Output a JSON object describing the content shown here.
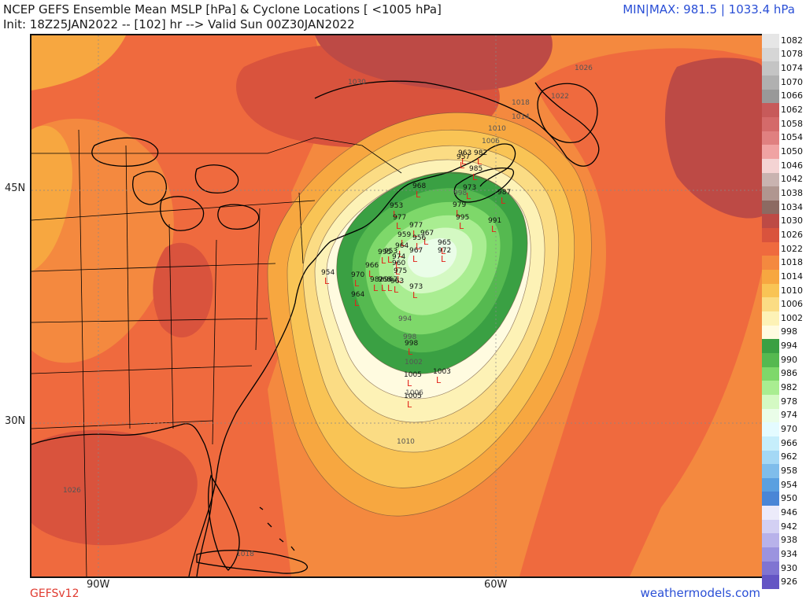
{
  "header": {
    "title": "NCEP GEFS Ensemble Mean MSLP [hPa] & Cyclone Locations [ <1005 hPa]",
    "init_line": "Init: 18Z25JAN2022 -- [102] hr --> Valid Sun 00Z30JAN2022",
    "minmax": "MIN|MAX: 981.5 | 1033.4 hPa"
  },
  "axes": {
    "lat_labels": [
      "45N",
      "30N"
    ],
    "lon_labels": [
      "90W",
      "60W"
    ]
  },
  "footer": {
    "model": "GEFSv12",
    "site": "weathermodels.com"
  },
  "colorbar": {
    "levels": [
      {
        "label": "1082",
        "color": "#e6e6e6"
      },
      {
        "label": "1078",
        "color": "#d6d6d6"
      },
      {
        "label": "1074",
        "color": "#c4c4c4"
      },
      {
        "label": "1070",
        "color": "#b0b0b0"
      },
      {
        "label": "1066",
        "color": "#999999"
      },
      {
        "label": "1062",
        "color": "#c75a5a"
      },
      {
        "label": "1058",
        "color": "#d46a6a"
      },
      {
        "label": "1054",
        "color": "#e08080"
      },
      {
        "label": "1050",
        "color": "#f0a3a3"
      },
      {
        "label": "1046",
        "color": "#f4d3d3"
      },
      {
        "label": "1042",
        "color": "#c9b3b0"
      },
      {
        "label": "1038",
        "color": "#b09690"
      },
      {
        "label": "1034",
        "color": "#8c6a62"
      },
      {
        "label": "1030",
        "color": "#bd4a45"
      },
      {
        "label": "1026",
        "color": "#d9533d"
      },
      {
        "label": "1022",
        "color": "#ef6a3e"
      },
      {
        "label": "1018",
        "color": "#f4893f"
      },
      {
        "label": "1014",
        "color": "#f7a740"
      },
      {
        "label": "1010",
        "color": "#f9c455"
      },
      {
        "label": "1006",
        "color": "#fbdc84"
      },
      {
        "label": "1002",
        "color": "#fdf2b6"
      },
      {
        "label": "998",
        "color": "#fffbe0"
      },
      {
        "label": "994",
        "color": "#3aa043"
      },
      {
        "label": "990",
        "color": "#55b950"
      },
      {
        "label": "986",
        "color": "#7ed86a"
      },
      {
        "label": "982",
        "color": "#a9ed91"
      },
      {
        "label": "978",
        "color": "#d4f9c3"
      },
      {
        "label": "974",
        "color": "#eafde8"
      },
      {
        "label": "970",
        "color": "#e4fbff"
      },
      {
        "label": "966",
        "color": "#c6eefb"
      },
      {
        "label": "962",
        "color": "#a4d8f5"
      },
      {
        "label": "958",
        "color": "#7fbdeb"
      },
      {
        "label": "954",
        "color": "#5aa0e0"
      },
      {
        "label": "950",
        "color": "#4a86d6"
      },
      {
        "label": "946",
        "color": "#ecebfa"
      },
      {
        "label": "942",
        "color": "#d3d0f3"
      },
      {
        "label": "938",
        "color": "#b8b2ea"
      },
      {
        "label": "934",
        "color": "#9b93df"
      },
      {
        "label": "930",
        "color": "#7f74d2"
      },
      {
        "label": "926",
        "color": "#6455c4"
      }
    ]
  },
  "isobar_labels": [
    {
      "text": "1030"
    },
    {
      "text": "1026"
    },
    {
      "text": "1018"
    },
    {
      "text": "1022"
    },
    {
      "text": "1014"
    },
    {
      "text": "1010"
    },
    {
      "text": "1006"
    },
    {
      "text": "998"
    },
    {
      "text": "994"
    },
    {
      "text": "998"
    },
    {
      "text": "1002"
    },
    {
      "text": "1006"
    },
    {
      "text": "1010"
    },
    {
      "text": "1026"
    },
    {
      "text": "1018"
    }
  ],
  "cyclones": [
    {
      "p": "963"
    },
    {
      "p": "982"
    },
    {
      "p": "957"
    },
    {
      "p": "985"
    },
    {
      "p": "968"
    },
    {
      "p": "973"
    },
    {
      "p": "987"
    },
    {
      "p": "953"
    },
    {
      "p": "979"
    },
    {
      "p": "977"
    },
    {
      "p": "995"
    },
    {
      "p": "991"
    },
    {
      "p": "977"
    },
    {
      "p": "959"
    },
    {
      "p": "967"
    },
    {
      "p": "956"
    },
    {
      "p": "964"
    },
    {
      "p": "965"
    },
    {
      "p": "967"
    },
    {
      "p": "972"
    },
    {
      "p": "995"
    },
    {
      "p": "953"
    },
    {
      "p": "974"
    },
    {
      "p": "966"
    },
    {
      "p": "960"
    },
    {
      "p": "975"
    },
    {
      "p": "954"
    },
    {
      "p": "970"
    },
    {
      "p": "982"
    },
    {
      "p": "968"
    },
    {
      "p": "967"
    },
    {
      "p": "963"
    },
    {
      "p": "973"
    },
    {
      "p": "964"
    },
    {
      "p": "998"
    },
    {
      "p": "1005"
    },
    {
      "p": "1003"
    },
    {
      "p": "1005"
    }
  ],
  "legend_title": "Cyclone Locations"
}
